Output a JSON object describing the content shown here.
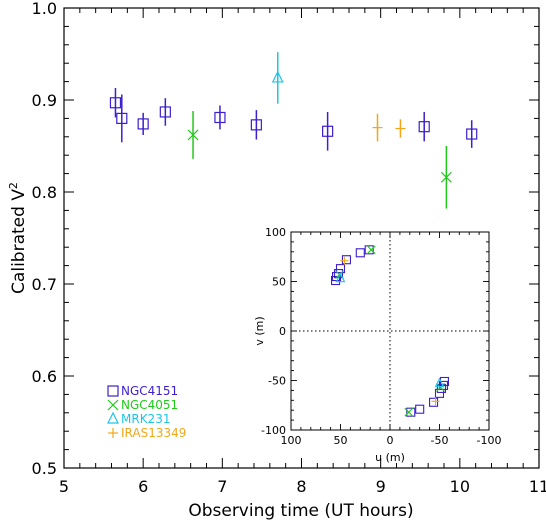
{
  "chart_data": [
    {
      "type": "scatter",
      "title": "",
      "xlabel": "Observing time (UT hours)",
      "ylabel": "Calibrated V",
      "ylabel_superscript": "2",
      "xlim": [
        5,
        11
      ],
      "ylim": [
        0.5,
        1.0
      ],
      "xticks": [
        "5",
        "6",
        "7",
        "8",
        "9",
        "10",
        "11"
      ],
      "yticks": [
        "0.5",
        "0.6",
        "0.7",
        "0.8",
        "0.9",
        "1.0"
      ],
      "legend_position": "lower-left",
      "series": [
        {
          "name": "NGC4151",
          "marker": "square",
          "color": "#3c1fd0",
          "points": [
            {
              "x": 5.65,
              "y": 0.897,
              "err": 0.016
            },
            {
              "x": 5.73,
              "y": 0.88,
              "err": 0.026
            },
            {
              "x": 6.0,
              "y": 0.874,
              "err": 0.012
            },
            {
              "x": 6.28,
              "y": 0.887,
              "err": 0.015
            },
            {
              "x": 6.97,
              "y": 0.881,
              "err": 0.013
            },
            {
              "x": 7.43,
              "y": 0.873,
              "err": 0.016
            },
            {
              "x": 8.33,
              "y": 0.866,
              "err": 0.021
            },
            {
              "x": 9.55,
              "y": 0.871,
              "err": 0.016
            },
            {
              "x": 10.15,
              "y": 0.863,
              "err": 0.015
            }
          ]
        },
        {
          "name": "NGC4051",
          "marker": "x",
          "color": "#22c81d",
          "points": [
            {
              "x": 6.63,
              "y": 0.862,
              "err": 0.026
            },
            {
              "x": 9.83,
              "y": 0.816,
              "err": 0.034
            }
          ]
        },
        {
          "name": "MRK231",
          "marker": "triangle",
          "color": "#1ec5e8",
          "points": [
            {
              "x": 7.7,
              "y": 0.924,
              "err": 0.028
            }
          ]
        },
        {
          "name": "IRAS13349",
          "marker": "plus",
          "color": "#f0a81a",
          "points": [
            {
              "x": 8.96,
              "y": 0.87,
              "err": 0.015
            },
            {
              "x": 9.25,
              "y": 0.869,
              "err": 0.01
            }
          ]
        }
      ]
    },
    {
      "type": "scatter",
      "title": "",
      "xlabel": "u (m)",
      "ylabel": "v (m)",
      "xlim": [
        100,
        -100
      ],
      "ylim": [
        -100,
        100
      ],
      "xticks": [
        "100",
        "50",
        "0",
        "-50",
        "-100"
      ],
      "yticks": [
        "-100",
        "-50",
        "0",
        "50",
        "100"
      ],
      "series": [
        {
          "name": "NGC4151",
          "marker": "square",
          "color": "#3c1fd0",
          "points": [
            {
              "x": 55,
              "y": 51
            },
            {
              "x": 54,
              "y": 55
            },
            {
              "x": 52,
              "y": 58
            },
            {
              "x": 50,
              "y": 63
            },
            {
              "x": 44,
              "y": 72
            },
            {
              "x": 30,
              "y": 79
            },
            {
              "x": 21,
              "y": 82
            },
            {
              "x": -55,
              "y": -51
            },
            {
              "x": -54,
              "y": -55
            },
            {
              "x": -52,
              "y": -58
            },
            {
              "x": -50,
              "y": -63
            },
            {
              "x": -44,
              "y": -72
            },
            {
              "x": -30,
              "y": -79
            },
            {
              "x": -21,
              "y": -82
            }
          ]
        },
        {
          "name": "NGC4051",
          "marker": "x",
          "color": "#22c81d",
          "points": [
            {
              "x": 51,
              "y": 57
            },
            {
              "x": 19,
              "y": 82
            },
            {
              "x": -51,
              "y": -57
            },
            {
              "x": -19,
              "y": -82
            }
          ]
        },
        {
          "name": "MRK231",
          "marker": "triangle",
          "color": "#1ec5e8",
          "points": [
            {
              "x": 50,
              "y": 53
            },
            {
              "x": -50,
              "y": -53
            }
          ]
        },
        {
          "name": "IRAS13349",
          "marker": "plus",
          "color": "#f0a81a",
          "points": [
            {
              "x": 46,
              "y": 71
            },
            {
              "x": -46,
              "y": -71
            }
          ]
        }
      ]
    }
  ]
}
